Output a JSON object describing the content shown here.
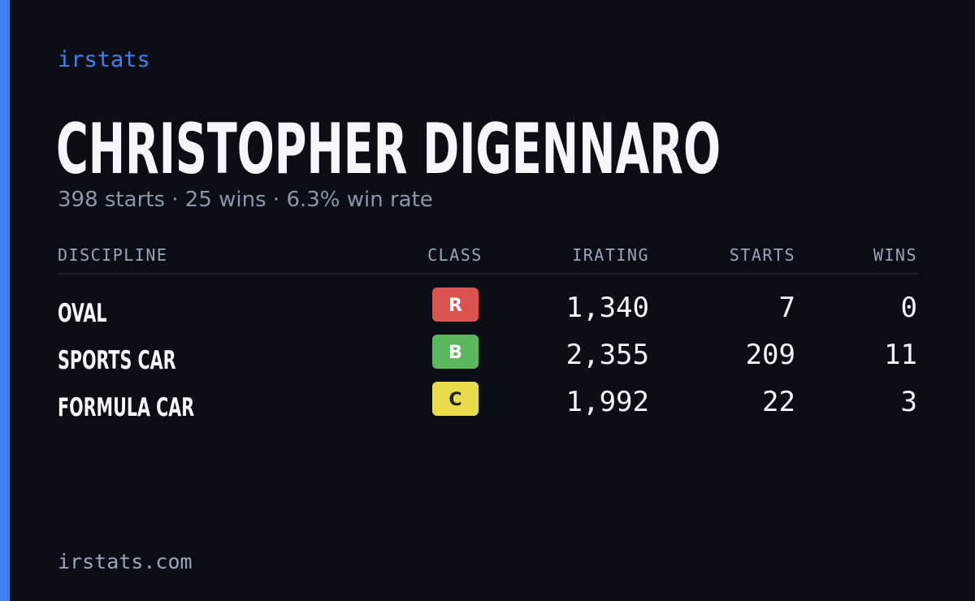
{
  "header": {
    "brand": "irstats",
    "name": "CHRISTOPHER DIGENNARO",
    "subtitle": "398 starts · 25 wins · 6.3% win rate"
  },
  "table": {
    "columns": [
      "DISCIPLINE",
      "CLASS",
      "IRATING",
      "STARTS",
      "WINS"
    ],
    "rows": [
      {
        "discipline": "OVAL",
        "class": "R",
        "badge_color": "#d9534f",
        "badge_text_color": "#ffffff",
        "irating": "1,340",
        "starts": "7",
        "wins": "0"
      },
      {
        "discipline": "SPORTS CAR",
        "class": "B",
        "badge_color": "#5cb85c",
        "badge_text_color": "#ffffff",
        "irating": "2,355",
        "starts": "209",
        "wins": "11"
      },
      {
        "discipline": "FORMULA CAR",
        "class": "C",
        "badge_color": "#e8dc4a",
        "badge_text_color": "#222222",
        "irating": "1,992",
        "starts": "22",
        "wins": "3"
      }
    ]
  },
  "footer": {
    "domain": "irstats.com"
  }
}
